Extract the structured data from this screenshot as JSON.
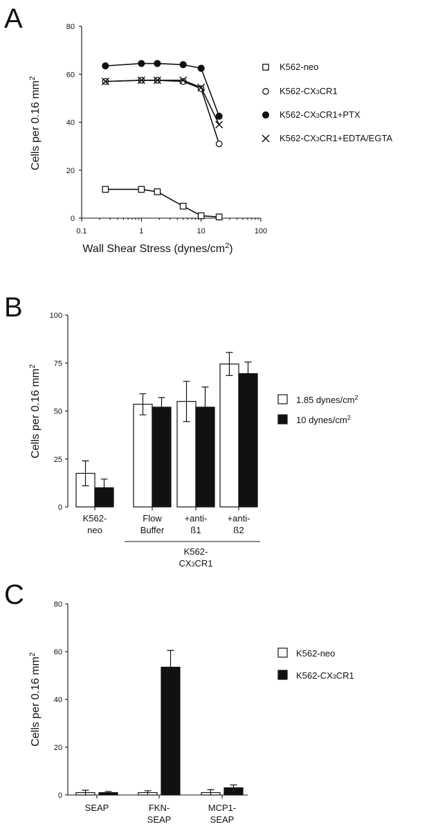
{
  "panels": [
    {
      "letter": "A",
      "chart_data": {
        "type": "line",
        "x_scale": "log",
        "xlabel": "Wall Shear Stress (dynes/cm",
        "xlabel_sup": "2",
        "xlabel_end": ")",
        "ylabel": "Cells per 0.16 mm",
        "ylabel_sup": "2",
        "xlim": [
          0.1,
          100
        ],
        "ylim": [
          0,
          80
        ],
        "x_ticks": [
          0.1,
          1,
          10,
          100
        ],
        "x_tick_labels": [
          "0.1",
          "1",
          "10",
          "100"
        ],
        "y_ticks": [
          0,
          20,
          40,
          60,
          80
        ],
        "y_tick_labels": [
          "0",
          "20",
          "40",
          "60",
          "80"
        ],
        "series": [
          {
            "name": "K562-neo",
            "marker": "square-open",
            "x": [
              0.25,
              1,
              1.85,
              5,
              10,
              20
            ],
            "y": [
              12,
              12,
              11,
              5,
              1,
              0.5
            ]
          },
          {
            "name": "K562-CX3CR1",
            "marker": "circle-open",
            "x": [
              0.25,
              1,
              1.85,
              5,
              10,
              20
            ],
            "y": [
              57,
              57.5,
              57.5,
              57,
              54,
              31
            ]
          },
          {
            "name": "K562-CX3CR1+PTX",
            "marker": "circle-filled",
            "x": [
              0.25,
              1,
              1.85,
              5,
              10,
              20
            ],
            "y": [
              63.5,
              64.5,
              64.5,
              64,
              62.5,
              42.5
            ]
          },
          {
            "name": "K562-CX3CR1+EDTA/EGTA",
            "marker": "cross",
            "x": [
              0.25,
              1,
              1.85,
              5,
              10,
              20
            ],
            "y": [
              57,
              57.5,
              57.5,
              57.5,
              54.5,
              39
            ]
          }
        ],
        "legend_position": "right"
      }
    },
    {
      "letter": "B",
      "chart_data": {
        "type": "bar",
        "ylabel": "Cells per 0.16 mm",
        "ylabel_sup": "2",
        "ylim": [
          0,
          100
        ],
        "y_ticks": [
          0,
          25,
          50,
          75,
          100
        ],
        "y_tick_labels": [
          "0",
          "25",
          "50",
          "75",
          "100"
        ],
        "categories": [
          [
            "K562-",
            "neo"
          ],
          [
            "Flow",
            "Buffer"
          ],
          [
            "+anti-",
            "ß1"
          ],
          [
            "+anti-",
            "ß2"
          ]
        ],
        "group_label": [
          "K562-",
          "CX3CR1"
        ],
        "series": [
          {
            "name": "1.85 dynes/cm",
            "sup": "2",
            "fill": "open",
            "values": [
              17.5,
              53.5,
              55,
              74.5
            ],
            "errors": [
              6.5,
              5.5,
              10.5,
              6
            ]
          },
          {
            "name": "10 dynes/cm",
            "sup": "2",
            "fill": "solid",
            "values": [
              10,
              52,
              52,
              69.5
            ],
            "errors": [
              4.5,
              5,
              10.5,
              6
            ]
          }
        ],
        "legend_position": "right"
      }
    },
    {
      "letter": "C",
      "chart_data": {
        "type": "bar",
        "ylabel": "Cells per 0.16 mm",
        "ylabel_sup": "2",
        "ylim": [
          0,
          80
        ],
        "y_ticks": [
          0,
          20,
          40,
          60,
          80
        ],
        "y_tick_labels": [
          "0",
          "20",
          "40",
          "60",
          "80"
        ],
        "categories": [
          [
            "SEAP"
          ],
          [
            "FKN-",
            "SEAP"
          ],
          [
            "MCP1-",
            "SEAP"
          ]
        ],
        "series": [
          {
            "name": "K562-neo",
            "fill": "open",
            "values": [
              1,
              1,
              1
            ],
            "errors": [
              1,
              0.8,
              1.2
            ]
          },
          {
            "name": "K562-CX3CR1",
            "fill": "solid",
            "values": [
              1,
              53.5,
              3
            ],
            "errors": [
              0.5,
              7,
              1.2
            ]
          }
        ],
        "legend_position": "right"
      }
    }
  ]
}
